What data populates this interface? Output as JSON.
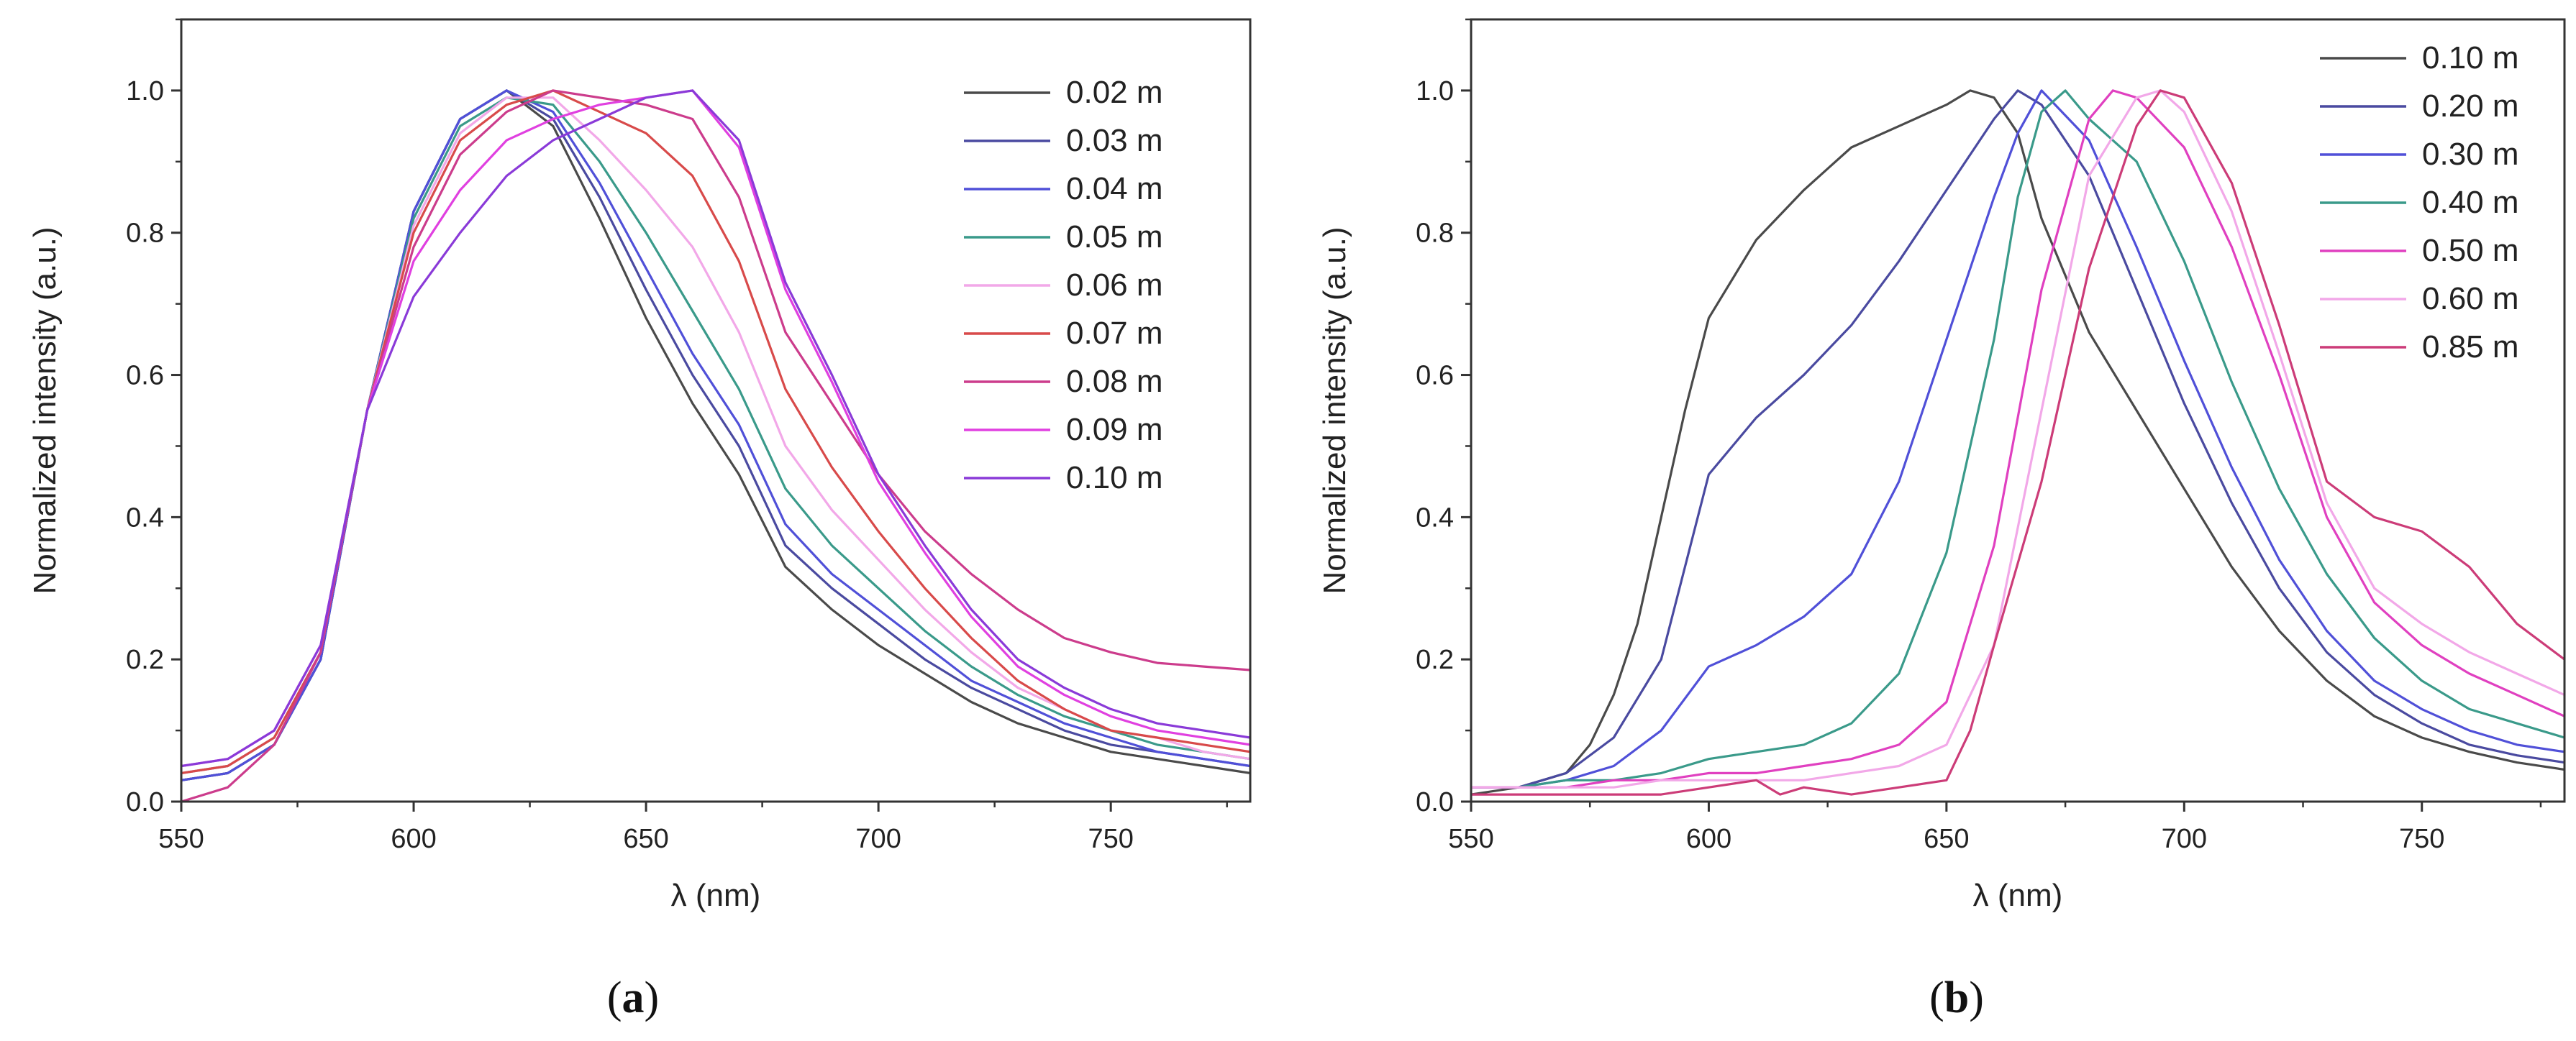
{
  "chart_data": [
    {
      "type": "line",
      "panel": "a",
      "caption_open": "(",
      "caption_letter": "a",
      "caption_close": ")",
      "xlabel": "λ (nm)",
      "ylabel": "Normalized intensity (a.u.)",
      "xlim": [
        550,
        780
      ],
      "ylim": [
        0,
        1.1
      ],
      "xticks": [
        550,
        600,
        650,
        700,
        750
      ],
      "yticks": [
        0.0,
        0.2,
        0.4,
        0.6,
        0.8,
        1.0
      ],
      "ytick_labels": [
        "0.0",
        "0.2",
        "0.4",
        "0.6",
        "0.8",
        "1.0"
      ],
      "legend_position": "top-right",
      "series": [
        {
          "name": "0.02 m",
          "color": "#4a4a4a",
          "x": [
            550,
            560,
            570,
            580,
            590,
            600,
            610,
            620,
            630,
            640,
            650,
            660,
            670,
            680,
            690,
            700,
            710,
            720,
            730,
            740,
            750,
            760,
            770,
            780
          ],
          "y": [
            0.03,
            0.04,
            0.08,
            0.2,
            0.55,
            0.83,
            0.96,
            1.0,
            0.95,
            0.82,
            0.68,
            0.56,
            0.46,
            0.33,
            0.27,
            0.22,
            0.18,
            0.14,
            0.11,
            0.09,
            0.07,
            0.06,
            0.05,
            0.04
          ]
        },
        {
          "name": "0.03 m",
          "color": "#4a4aa0",
          "x": [
            550,
            560,
            570,
            580,
            590,
            600,
            610,
            620,
            630,
            640,
            650,
            660,
            670,
            680,
            690,
            700,
            710,
            720,
            730,
            740,
            750,
            760,
            770,
            780
          ],
          "y": [
            0.03,
            0.04,
            0.08,
            0.2,
            0.55,
            0.83,
            0.96,
            1.0,
            0.96,
            0.85,
            0.72,
            0.6,
            0.5,
            0.36,
            0.3,
            0.25,
            0.2,
            0.16,
            0.13,
            0.1,
            0.08,
            0.07,
            0.06,
            0.05
          ]
        },
        {
          "name": "0.04 m",
          "color": "#5050d8",
          "x": [
            550,
            560,
            570,
            580,
            590,
            600,
            610,
            620,
            630,
            640,
            650,
            660,
            670,
            680,
            690,
            700,
            710,
            720,
            730,
            740,
            750,
            760,
            770,
            780
          ],
          "y": [
            0.03,
            0.04,
            0.08,
            0.2,
            0.55,
            0.83,
            0.96,
            1.0,
            0.97,
            0.87,
            0.75,
            0.63,
            0.53,
            0.39,
            0.32,
            0.27,
            0.22,
            0.17,
            0.14,
            0.11,
            0.09,
            0.07,
            0.06,
            0.05
          ]
        },
        {
          "name": "0.05 m",
          "color": "#3a9a8a",
          "x": [
            550,
            560,
            570,
            580,
            590,
            600,
            610,
            620,
            630,
            640,
            650,
            660,
            670,
            680,
            690,
            700,
            710,
            720,
            730,
            740,
            750,
            760,
            770,
            780
          ],
          "y": [
            0.04,
            0.05,
            0.09,
            0.21,
            0.55,
            0.82,
            0.95,
            0.99,
            0.98,
            0.9,
            0.8,
            0.69,
            0.58,
            0.44,
            0.36,
            0.3,
            0.24,
            0.19,
            0.15,
            0.12,
            0.1,
            0.08,
            0.07,
            0.06
          ]
        },
        {
          "name": "0.06 m",
          "color": "#f2a8e8",
          "x": [
            550,
            560,
            570,
            580,
            590,
            600,
            610,
            620,
            630,
            640,
            650,
            660,
            670,
            680,
            690,
            700,
            710,
            720,
            730,
            740,
            750,
            760,
            770,
            780
          ],
          "y": [
            0.04,
            0.05,
            0.09,
            0.21,
            0.55,
            0.81,
            0.94,
            0.99,
            0.99,
            0.93,
            0.86,
            0.78,
            0.66,
            0.5,
            0.41,
            0.34,
            0.27,
            0.21,
            0.16,
            0.13,
            0.1,
            0.09,
            0.07,
            0.06
          ]
        },
        {
          "name": "0.07 m",
          "color": "#d84a4a",
          "x": [
            550,
            560,
            570,
            580,
            590,
            600,
            610,
            620,
            630,
            640,
            650,
            660,
            670,
            680,
            690,
            700,
            710,
            720,
            730,
            740,
            750,
            760,
            770,
            780
          ],
          "y": [
            0.04,
            0.05,
            0.09,
            0.21,
            0.55,
            0.8,
            0.93,
            0.98,
            1.0,
            0.97,
            0.94,
            0.88,
            0.76,
            0.58,
            0.47,
            0.38,
            0.3,
            0.23,
            0.17,
            0.13,
            0.1,
            0.09,
            0.08,
            0.07
          ]
        },
        {
          "name": "0.08 m",
          "color": "#cc3c8c",
          "x": [
            550,
            560,
            570,
            580,
            590,
            600,
            610,
            620,
            630,
            640,
            650,
            660,
            670,
            680,
            690,
            700,
            710,
            720,
            730,
            740,
            750,
            760,
            770,
            780
          ],
          "y": [
            0.0,
            0.02,
            0.08,
            0.21,
            0.55,
            0.78,
            0.91,
            0.97,
            1.0,
            0.99,
            0.98,
            0.96,
            0.85,
            0.66,
            0.56,
            0.46,
            0.38,
            0.32,
            0.27,
            0.23,
            0.21,
            0.195,
            0.19,
            0.185
          ]
        },
        {
          "name": "0.09 m",
          "color": "#e040e0",
          "x": [
            550,
            560,
            570,
            580,
            590,
            600,
            610,
            620,
            630,
            640,
            650,
            660,
            670,
            680,
            690,
            700,
            710,
            720,
            730,
            740,
            750,
            760,
            770,
            780
          ],
          "y": [
            0.05,
            0.06,
            0.1,
            0.22,
            0.55,
            0.76,
            0.86,
            0.93,
            0.96,
            0.98,
            0.99,
            1.0,
            0.92,
            0.72,
            0.59,
            0.45,
            0.35,
            0.26,
            0.19,
            0.15,
            0.12,
            0.1,
            0.09,
            0.08
          ]
        },
        {
          "name": "0.10 m",
          "color": "#8a3ad8",
          "x": [
            550,
            560,
            570,
            580,
            590,
            600,
            610,
            620,
            630,
            640,
            650,
            660,
            670,
            680,
            690,
            700,
            710,
            720,
            730,
            740,
            750,
            760,
            770,
            780
          ],
          "y": [
            0.05,
            0.06,
            0.1,
            0.22,
            0.55,
            0.71,
            0.8,
            0.88,
            0.93,
            0.96,
            0.99,
            1.0,
            0.93,
            0.73,
            0.6,
            0.46,
            0.36,
            0.27,
            0.2,
            0.16,
            0.13,
            0.11,
            0.1,
            0.09
          ]
        }
      ]
    },
    {
      "type": "line",
      "panel": "b",
      "caption_open": "(",
      "caption_letter": "b",
      "caption_close": ")",
      "xlabel": "λ (nm)",
      "ylabel": "Normalized intensity (a.u.)",
      "xlim": [
        550,
        780
      ],
      "ylim": [
        0,
        1.1
      ],
      "xticks": [
        550,
        600,
        650,
        700,
        750
      ],
      "yticks": [
        0.0,
        0.2,
        0.4,
        0.6,
        0.8,
        1.0
      ],
      "ytick_labels": [
        "0.0",
        "0.2",
        "0.4",
        "0.6",
        "0.8",
        "1.0"
      ],
      "legend_position": "top-right",
      "series": [
        {
          "name": "0.10 m",
          "color": "#4a4a4a",
          "x": [
            550,
            560,
            570,
            575,
            580,
            585,
            590,
            595,
            600,
            610,
            620,
            630,
            640,
            650,
            655,
            660,
            665,
            670,
            680,
            690,
            700,
            710,
            720,
            730,
            740,
            750,
            760,
            770,
            780
          ],
          "y": [
            0.01,
            0.02,
            0.04,
            0.08,
            0.15,
            0.25,
            0.4,
            0.55,
            0.68,
            0.79,
            0.86,
            0.92,
            0.95,
            0.98,
            1.0,
            0.99,
            0.94,
            0.82,
            0.66,
            0.55,
            0.44,
            0.33,
            0.24,
            0.17,
            0.12,
            0.09,
            0.07,
            0.055,
            0.045
          ]
        },
        {
          "name": "0.20 m",
          "color": "#4a4aa0",
          "x": [
            550,
            560,
            570,
            580,
            590,
            600,
            610,
            620,
            630,
            640,
            650,
            660,
            665,
            670,
            680,
            690,
            700,
            710,
            720,
            730,
            740,
            750,
            760,
            770,
            780
          ],
          "y": [
            0.02,
            0.02,
            0.04,
            0.09,
            0.2,
            0.46,
            0.54,
            0.6,
            0.67,
            0.76,
            0.86,
            0.96,
            1.0,
            0.98,
            0.88,
            0.72,
            0.56,
            0.42,
            0.3,
            0.21,
            0.15,
            0.11,
            0.08,
            0.065,
            0.055
          ]
        },
        {
          "name": "0.30 m",
          "color": "#5050d8",
          "x": [
            550,
            560,
            570,
            580,
            590,
            600,
            610,
            620,
            630,
            640,
            650,
            660,
            665,
            670,
            680,
            690,
            700,
            710,
            720,
            730,
            740,
            750,
            760,
            770,
            780
          ],
          "y": [
            0.02,
            0.02,
            0.03,
            0.05,
            0.1,
            0.19,
            0.22,
            0.26,
            0.32,
            0.45,
            0.65,
            0.85,
            0.94,
            1.0,
            0.93,
            0.78,
            0.62,
            0.47,
            0.34,
            0.24,
            0.17,
            0.13,
            0.1,
            0.08,
            0.07
          ]
        },
        {
          "name": "0.40 m",
          "color": "#3a9a8a",
          "x": [
            550,
            560,
            570,
            580,
            590,
            600,
            610,
            620,
            630,
            640,
            650,
            660,
            665,
            670,
            675,
            680,
            690,
            700,
            710,
            720,
            730,
            740,
            750,
            760,
            770,
            780
          ],
          "y": [
            0.02,
            0.02,
            0.03,
            0.03,
            0.04,
            0.06,
            0.07,
            0.08,
            0.11,
            0.18,
            0.35,
            0.65,
            0.85,
            0.97,
            1.0,
            0.96,
            0.9,
            0.76,
            0.59,
            0.44,
            0.32,
            0.23,
            0.17,
            0.13,
            0.11,
            0.09
          ]
        },
        {
          "name": "0.50 m",
          "color": "#e040c0",
          "x": [
            550,
            560,
            570,
            580,
            590,
            600,
            610,
            620,
            630,
            640,
            650,
            660,
            670,
            680,
            685,
            690,
            700,
            710,
            720,
            730,
            740,
            750,
            760,
            770,
            780
          ],
          "y": [
            0.02,
            0.02,
            0.02,
            0.03,
            0.03,
            0.04,
            0.04,
            0.05,
            0.06,
            0.08,
            0.14,
            0.36,
            0.72,
            0.96,
            1.0,
            0.99,
            0.92,
            0.78,
            0.6,
            0.4,
            0.28,
            0.22,
            0.18,
            0.15,
            0.12
          ]
        },
        {
          "name": "0.60 m",
          "color": "#f2a8e8",
          "x": [
            550,
            560,
            570,
            580,
            590,
            600,
            610,
            620,
            630,
            640,
            650,
            660,
            670,
            680,
            690,
            695,
            700,
            710,
            720,
            730,
            740,
            750,
            760,
            770,
            780
          ],
          "y": [
            0.02,
            0.02,
            0.02,
            0.02,
            0.03,
            0.03,
            0.03,
            0.03,
            0.04,
            0.05,
            0.08,
            0.22,
            0.55,
            0.88,
            0.99,
            1.0,
            0.97,
            0.83,
            0.63,
            0.42,
            0.3,
            0.25,
            0.21,
            0.18,
            0.15
          ]
        },
        {
          "name": "0.85 m",
          "color": "#cc3c78",
          "x": [
            550,
            560,
            570,
            580,
            590,
            600,
            610,
            615,
            620,
            630,
            640,
            650,
            655,
            660,
            670,
            680,
            690,
            695,
            700,
            710,
            720,
            730,
            740,
            750,
            760,
            770,
            780
          ],
          "y": [
            0.01,
            0.01,
            0.01,
            0.01,
            0.01,
            0.02,
            0.03,
            0.01,
            0.02,
            0.01,
            0.02,
            0.03,
            0.1,
            0.22,
            0.45,
            0.75,
            0.95,
            1.0,
            0.99,
            0.87,
            0.67,
            0.45,
            0.4,
            0.38,
            0.33,
            0.25,
            0.2
          ]
        }
      ]
    }
  ]
}
